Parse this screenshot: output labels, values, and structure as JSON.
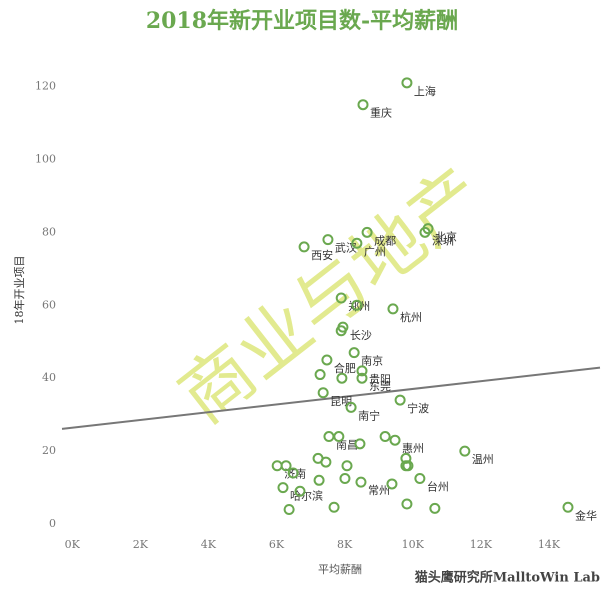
{
  "chart_data": {
    "type": "scatter",
    "title": "2018年新开业项目数-平均薪酬",
    "x_label": "平均薪酬",
    "y_label": "18年开业项目",
    "watermark": "商业与地产",
    "footer": "猫头鹰研究所MalltoWin Lab",
    "color": "#6aa84f",
    "trend_color": "#777777",
    "xlim": [
      -300,
      15500
    ],
    "ylim": [
      -3,
      130
    ],
    "xticks": [
      {
        "value": 0,
        "label": "0K"
      },
      {
        "value": 2000,
        "label": "2K"
      },
      {
        "value": 4000,
        "label": "4K"
      },
      {
        "value": 6000,
        "label": "6K"
      },
      {
        "value": 8000,
        "label": "8K"
      },
      {
        "value": 10000,
        "label": "10K"
      },
      {
        "value": 12000,
        "label": "12K"
      },
      {
        "value": 14000,
        "label": "14K"
      }
    ],
    "yticks": [
      0,
      20,
      40,
      60,
      80,
      100,
      120
    ],
    "x": [
      9830,
      8540,
      8660,
      10450,
      10360,
      7510,
      8360,
      6810,
      7900,
      8360,
      9420,
      7950,
      7900,
      7480,
      8280,
      8510,
      8510,
      7280,
      7920,
      7370,
      9630,
      8190,
      7540,
      7830,
      8450,
      9190,
      9480,
      11530,
      9800,
      9800,
      6020,
      6280,
      6490,
      7220,
      7450,
      8070,
      9860,
      10210,
      7250,
      8010,
      8480,
      9390,
      6190,
      6690,
      9830,
      6370,
      7690,
      10650,
      14560
    ],
    "values": [
      121,
      115,
      80,
      81,
      80,
      78,
      77,
      76,
      62,
      60,
      59,
      54,
      53,
      45,
      47,
      42,
      40,
      41,
      40,
      36,
      34,
      32,
      24,
      24,
      22,
      24,
      23,
      20,
      18,
      16,
      16,
      16,
      14,
      18,
      17,
      16,
      16,
      12.5,
      12,
      12.5,
      11.5,
      11,
      10,
      9,
      5.5,
      4,
      4.6,
      4.3,
      4.6
    ],
    "point_labels": [
      "上海",
      "重庆",
      "成都",
      "北京",
      "深圳",
      "武汉",
      "广州",
      "西安",
      "郑州",
      null,
      "杭州",
      "长沙",
      null,
      "合肥",
      "南京",
      "贵阳",
      "东莞",
      null,
      null,
      "昆明",
      "宁波",
      "南宁",
      "南昌",
      null,
      null,
      null,
      "惠州",
      "温州",
      null,
      null,
      "济南",
      null,
      null,
      null,
      null,
      null,
      null,
      "台州",
      null,
      null,
      "常州",
      null,
      "哈尔滨",
      null,
      null,
      null,
      null,
      null,
      "金华"
    ],
    "trend": {
      "x": [
        -300,
        15500
      ],
      "y": [
        26.1,
        42.9
      ]
    }
  }
}
